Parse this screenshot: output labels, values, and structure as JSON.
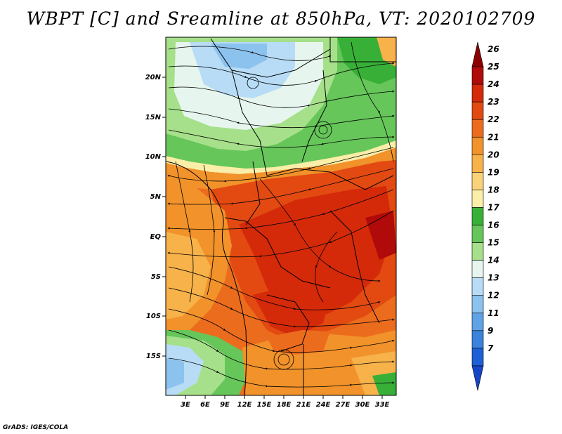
{
  "title": "WBPT [C] and Sreamline at 850hPa, VT: 2020102709",
  "credit": "GrADS: IGES/COLA",
  "map": {
    "lat_labels": [
      "20N",
      "15N",
      "10N",
      "5N",
      "EQ",
      "5S",
      "10S",
      "15S"
    ],
    "lon_labels": [
      "3E",
      "6E",
      "9E",
      "12E",
      "15E",
      "18E",
      "21E",
      "24E",
      "27E",
      "30E",
      "33E"
    ]
  },
  "colorbar": {
    "labels": [
      "26",
      "25",
      "24",
      "23",
      "22",
      "21",
      "20",
      "19",
      "18",
      "17",
      "16",
      "15",
      "14",
      "13",
      "12",
      "11",
      "9",
      "7"
    ],
    "colors": [
      "#8b0000",
      "#b10a0a",
      "#d42a0a",
      "#e24a12",
      "#ec6c1e",
      "#f2922a",
      "#f7b24a",
      "#fad27a",
      "#fbeea8",
      "#38b038",
      "#66c65a",
      "#a6e08a",
      "#e6f6ee",
      "#b8dcf6",
      "#8cc2ee",
      "#5fa2e6",
      "#3a82dc",
      "#1e5fd6",
      "#1546c8"
    ]
  }
}
